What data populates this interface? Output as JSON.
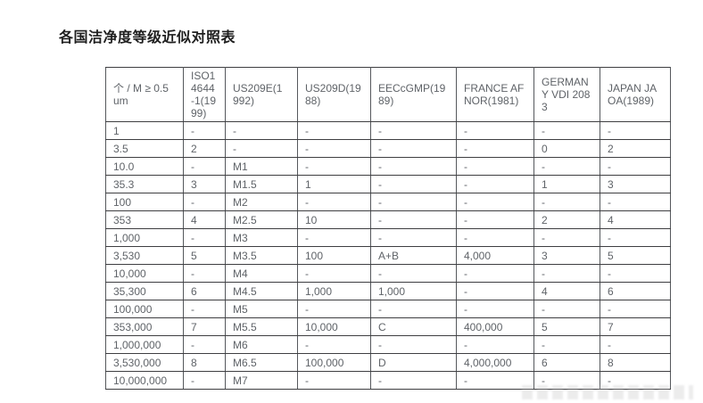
{
  "page": {
    "title": "各国洁净度等级近似对照表"
  },
  "table": {
    "columns": [
      "个 / M ≥ 0.5um",
      "ISO14644-1(1999)",
      "US209E(1992)",
      "US209D(1988)",
      "EECcGMP(1989)",
      "FRANCE AFNOR(1981)",
      "GERMANY VDI 2083",
      "JAPAN JAOA(1989)"
    ],
    "rows": [
      [
        "1",
        "-",
        "-",
        "-",
        "-",
        "-",
        "-",
        "-"
      ],
      [
        "3.5",
        "2",
        "-",
        "-",
        "-",
        "-",
        "0",
        "2"
      ],
      [
        "10.0",
        "-",
        "M1",
        "-",
        "-",
        "-",
        "-",
        "-"
      ],
      [
        "35.3",
        "3",
        "M1.5",
        "1",
        "-",
        "-",
        "1",
        "3"
      ],
      [
        "100",
        "-",
        "M2",
        "-",
        "-",
        "-",
        "-",
        "-"
      ],
      [
        "353",
        "4",
        "M2.5",
        "10",
        "-",
        "-",
        "2",
        "4"
      ],
      [
        "1,000",
        "-",
        "M3",
        "-",
        "-",
        "-",
        "-",
        "-"
      ],
      [
        "3,530",
        "5",
        "M3.5",
        "100",
        "A+B",
        "4,000",
        "3",
        "5"
      ],
      [
        "10,000",
        "-",
        "M4",
        "-",
        "-",
        "-",
        "-",
        "-"
      ],
      [
        "35,300",
        "6",
        "M4.5",
        "1,000",
        "1,000",
        "-",
        "4",
        "6"
      ],
      [
        "100,000",
        "-",
        "M5",
        "-",
        "-",
        "-",
        "-",
        "-"
      ],
      [
        "353,000",
        "7",
        "M5.5",
        "10,000",
        "C",
        "400,000",
        "5",
        "7"
      ],
      [
        "1,000,000",
        "-",
        "M6",
        "-",
        "-",
        "-",
        "-",
        "-"
      ],
      [
        "3,530,000",
        "8",
        "M6.5",
        "100,000",
        "D",
        "4,000,000",
        "6",
        "8"
      ],
      [
        "10,000,000",
        "-",
        "M7",
        "-",
        "-",
        "-",
        "-",
        "-"
      ]
    ]
  }
}
